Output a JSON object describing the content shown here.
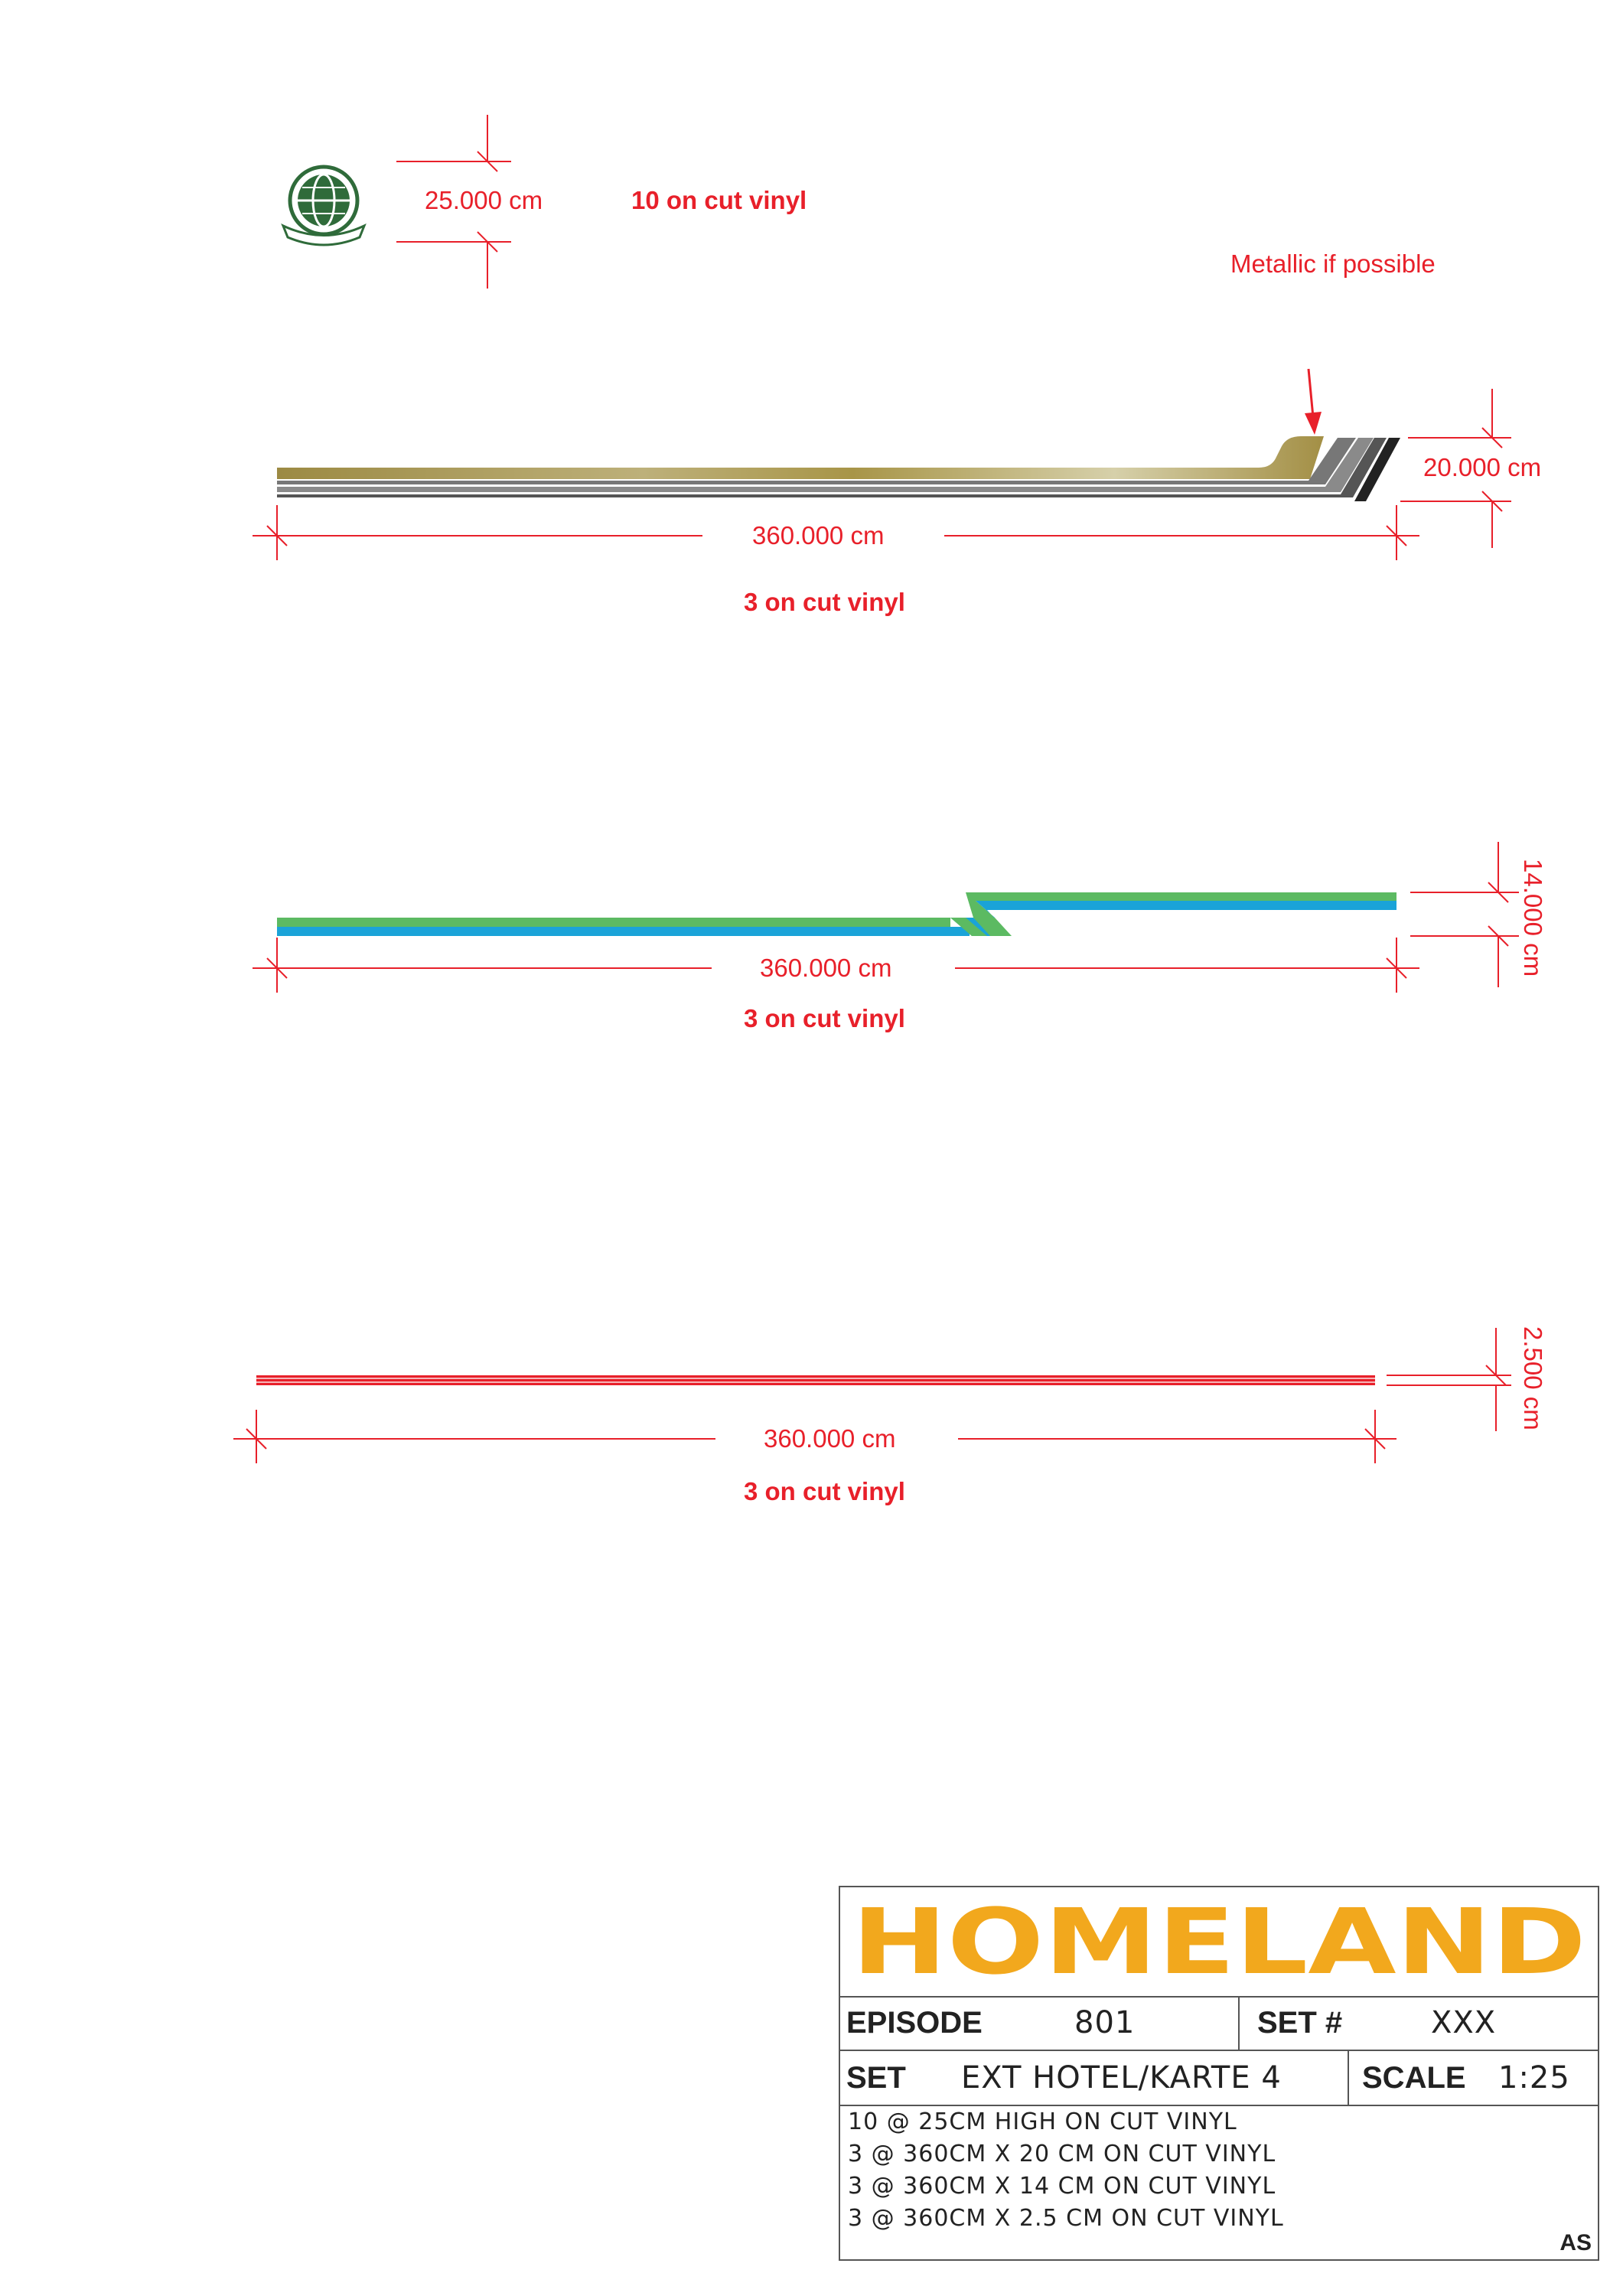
{
  "logo": {
    "width_dim": "25.000 cm",
    "note": "10 on cut vinyl",
    "emblem_icon": "globe-emblem-icon"
  },
  "stripe_gold": {
    "annotation": "Metallic if possible",
    "length_dim": "360.000 cm",
    "height_dim": "20.000 cm",
    "note": "3 on cut vinyl",
    "colors": {
      "gold": "#a38f45",
      "gold_light": "#cfc79a",
      "grey": "#8a8a8a",
      "dark": "#555555",
      "black": "#222222"
    }
  },
  "stripe_blue_green": {
    "length_dim": "360.000 cm",
    "height_dim": "14.000 cm",
    "note": "3 on cut vinyl",
    "colors": {
      "green": "#5cba62",
      "blue": "#1aa3d8"
    }
  },
  "stripe_red": {
    "length_dim": "360.000 cm",
    "height_dim": "2.500 cm",
    "note": "3 on cut vinyl",
    "colors": {
      "red": "#e8202a"
    }
  },
  "title_block": {
    "logo_text": "HOMELAND",
    "logo_color": "#f2a81d",
    "episode_label": "EPISODE",
    "episode_value": "801",
    "set_num_label": "SET #",
    "set_num_value": "XXX",
    "set_label": "SET",
    "set_value": "EXT HOTEL/KARTE 4",
    "scale_label": "SCALE",
    "scale_value": "1:25",
    "notes": [
      "10 @ 25CM HIGH ON CUT VINYL",
      "3 @ 360CM X 20 CM ON CUT VINYL",
      "3 @ 360CM X 14 CM ON CUT VINYL",
      "3 @ 360CM X 2.5 CM ON CUT VINYL"
    ],
    "initials": "AS"
  }
}
